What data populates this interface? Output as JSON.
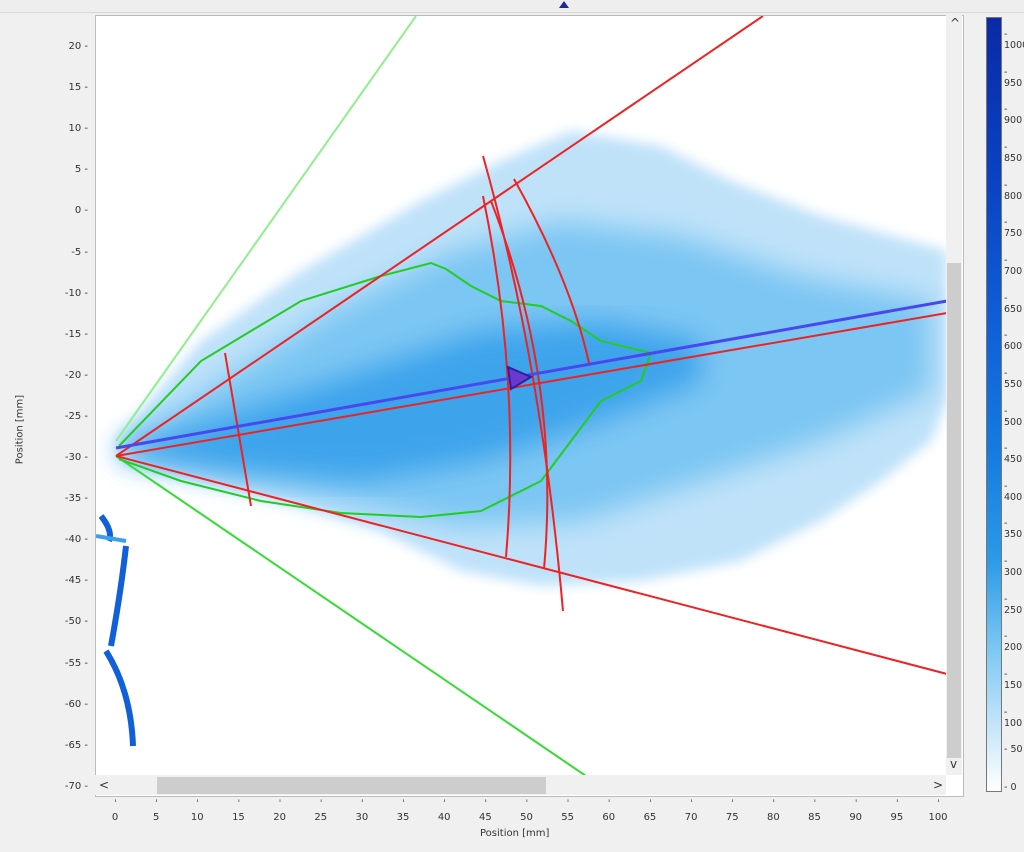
{
  "chart_data": {
    "type": "heatmap",
    "xlabel": "Position [mm]",
    "ylabel": "Position [mm]",
    "xlim": [
      -2,
      101
    ],
    "ylim": [
      -70.5,
      24
    ],
    "x_ticks": [
      "0",
      "5",
      "10",
      "15",
      "20",
      "25",
      "30",
      "35",
      "40",
      "45",
      "50",
      "55",
      "60",
      "65",
      "70",
      "75",
      "80",
      "85",
      "90",
      "95",
      "100"
    ],
    "y_ticks": [
      "20",
      "15",
      "10",
      "5",
      "0",
      "-5",
      "-10",
      "-15",
      "-20",
      "-25",
      "-30",
      "-35",
      "-40",
      "-45",
      "-50",
      "-55",
      "-60",
      "-65",
      "-70"
    ],
    "colorbar": {
      "min": 0,
      "max": 1000,
      "ticks": [
        "0",
        "50",
        "100",
        "150",
        "200",
        "250",
        "300",
        "350",
        "400",
        "450",
        "500",
        "550",
        "600",
        "650",
        "700",
        "750",
        "800",
        "850",
        "900",
        "950",
        "1000"
      ]
    },
    "colors": {
      "spray": "#2a9ae8",
      "contour": "#22cc22",
      "cone_lines": "#ee2222",
      "axis_line": "#4444ee",
      "outer_lines": "#33dd33"
    },
    "overlay": {
      "nozzle_origin_mm": [
        0,
        -29
      ],
      "centroid_marker_mm": [
        48.5,
        -20
      ]
    }
  },
  "scrollbars": {
    "left_arrow": "<",
    "right_arrow": ">",
    "up_arrow": "^",
    "down_arrow": "v"
  }
}
